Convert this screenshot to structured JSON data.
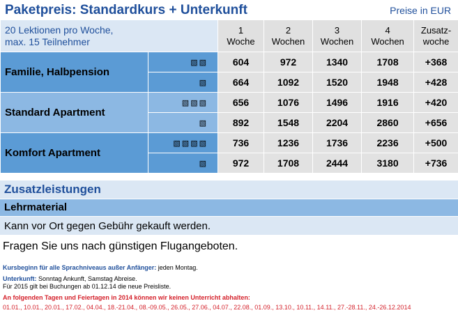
{
  "header": {
    "title": "Paketpreis: Standardkurs + Unterkunft",
    "currency": "Preise in EUR"
  },
  "table": {
    "lessons_line1": "20 Lektionen pro Woche,",
    "lessons_line2": "max. 15 Teilnehmer",
    "columns": [
      {
        "line1": "1",
        "line2": "Woche"
      },
      {
        "line1": "2",
        "line2": "Wochen"
      },
      {
        "line1": "3",
        "line2": "Wochen"
      },
      {
        "line1": "4",
        "line2": "Wochen"
      },
      {
        "line1": "Zusatz-",
        "line2": "woche"
      }
    ],
    "categories": [
      {
        "name": "Familie, Halbpension",
        "rows": [
          {
            "room_icon": "double-bed-icon",
            "prices": [
              "604",
              "972",
              "1340",
              "1708",
              "+368"
            ]
          },
          {
            "room_icon": "single-bed-icon",
            "prices": [
              "664",
              "1092",
              "1520",
              "1948",
              "+428"
            ]
          }
        ]
      },
      {
        "name": "Standard Apartment",
        "rows": [
          {
            "room_icon": "triple-bed-icon",
            "prices": [
              "656",
              "1076",
              "1496",
              "1916",
              "+420"
            ]
          },
          {
            "room_icon": "single-bed-icon",
            "prices": [
              "892",
              "1548",
              "2204",
              "2860",
              "+656"
            ]
          }
        ]
      },
      {
        "name": "Komfort Apartment",
        "rows": [
          {
            "room_icon": "quadruple-bed-icon",
            "prices": [
              "736",
              "1236",
              "1736",
              "2236",
              "+500"
            ]
          },
          {
            "room_icon": "single-bed-icon",
            "prices": [
              "972",
              "1708",
              "2444",
              "3180",
              "+736"
            ]
          }
        ]
      }
    ]
  },
  "extras": {
    "heading": "Zusatzleistungen",
    "item_title": "Lehrmaterial",
    "item_text": "Kann vor Ort gegen Gebühr gekauft werden."
  },
  "note": "Fragen Sie uns nach günstigen Flugangeboten.",
  "footer": {
    "course_label": "Kursbeginn für alle Sprachniveaus außer Anfänger:",
    "course_value": " jeden Montag.",
    "accommodation_label": "Unterkunft:",
    "accommodation_value": " Sonntag Ankunft, Samstag Abreise.",
    "price_list_note": "Für 2015 gilt bei Buchungen ab 01.12.14 die neue Preisliste.",
    "holidays_heading": "An folgenden Tagen und Feiertagen in 2014 können wir keinen Unterricht abhalten:",
    "holidays_dates": "01.01., 10.01., 20.01., 17.02., 04.04., 18.-21.04., 08.-09.05., 26.05., 27.06., 04.07., 22.08., 01.09., 13.10., 10.11., 14.11., 27.-28.11., 24.-26.12.2014"
  },
  "colors": {
    "title_blue": "#1f4f9b",
    "category_dark_blue": "#5b9bd5",
    "category_light_blue": "#8cb8e3",
    "pale_blue": "#dbe7f4",
    "price_grey": "#e2e2e2",
    "holiday_red": "#d4202a"
  }
}
